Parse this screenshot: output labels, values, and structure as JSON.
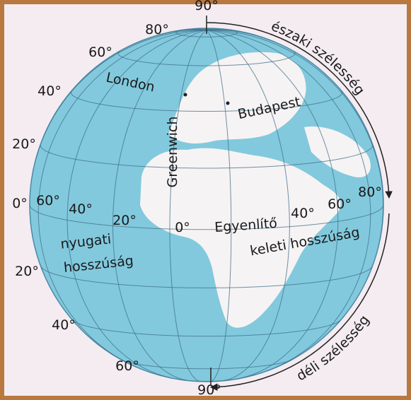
{
  "globe": {
    "latitudes_north": [
      "90°",
      "80°",
      "60°",
      "40°",
      "20°"
    ],
    "equator_degree": "0°",
    "latitudes_south": [
      "20°",
      "40°",
      "60°",
      "90°"
    ],
    "longitudes_west": [
      "60°",
      "40°",
      "20°"
    ],
    "prime_meridian_degree": "0°",
    "longitudes_east": [
      "40°",
      "60°",
      "80°"
    ],
    "cities": [
      "London",
      "Budapest"
    ],
    "meridian_name": "Greenwich",
    "equator_name": "Egyenlítő",
    "west_label": [
      "nyugati",
      "hosszúság"
    ],
    "east_label": "keleti hosszúság",
    "north_arc_label": "északi szélesség",
    "south_arc_label": "déli szélesség"
  }
}
